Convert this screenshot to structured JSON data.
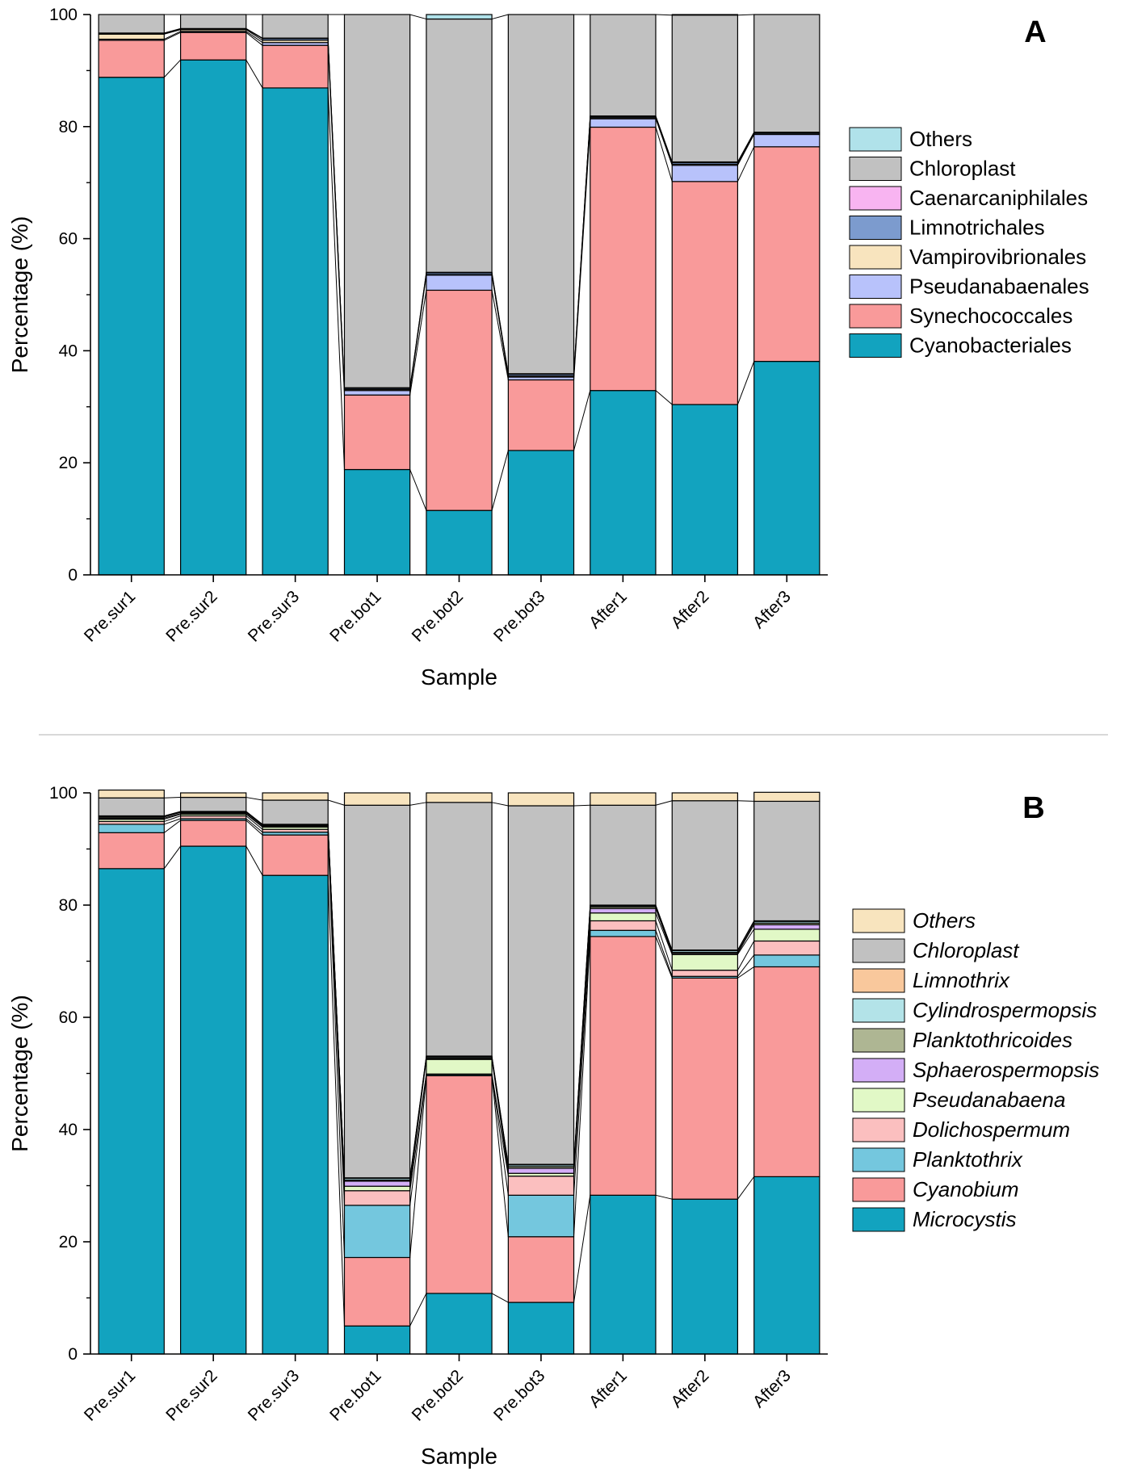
{
  "chart_data": [
    {
      "type": "bar",
      "stacked": true,
      "panel_label": "A",
      "xlabel": "Sample",
      "ylabel": "Percentage (%)",
      "ylim": [
        0,
        100
      ],
      "yticks": [
        0,
        20,
        40,
        60,
        80,
        100
      ],
      "categories": [
        "Pre.sur1",
        "Pre.sur2",
        "Pre.sur3",
        "Pre.bot1",
        "Pre.bot2",
        "Pre.bot3",
        "After1",
        "After2",
        "After3"
      ],
      "legend_italic": false,
      "series": [
        {
          "name": "Cyanobacteriales",
          "color": "#12A3BF",
          "values": [
            88.8,
            91.9,
            86.9,
            18.8,
            11.5,
            22.2,
            32.9,
            30.4,
            38.1
          ]
        },
        {
          "name": "Synechococcales",
          "color": "#F99A9A",
          "values": [
            6.6,
            4.9,
            7.6,
            13.3,
            39.3,
            12.6,
            47.0,
            39.8,
            38.3
          ]
        },
        {
          "name": "Pseudanabaenales",
          "color": "#B8C2FB",
          "values": [
            0.2,
            0.2,
            0.5,
            0.8,
            2.7,
            0.5,
            1.5,
            2.9,
            2.2
          ]
        },
        {
          "name": "Vampirovibrionales",
          "color": "#F8E4BE",
          "values": [
            0.9,
            0.3,
            0.4,
            0.2,
            0.1,
            0.2,
            0.2,
            0.2,
            0.1
          ]
        },
        {
          "name": "Limnotrichales",
          "color": "#7C9BCE",
          "values": [
            0.1,
            0.1,
            0.3,
            0.2,
            0.3,
            0.3,
            0.2,
            0.3,
            0.2
          ]
        },
        {
          "name": "Caenarcaniphilales",
          "color": "#F8B4F1",
          "values": [
            0.1,
            0.1,
            0.1,
            0.1,
            0.1,
            0.1,
            0.1,
            0.1,
            0.1
          ]
        },
        {
          "name": "Chloroplast",
          "color": "#C1C1C1",
          "values": [
            3.3,
            2.5,
            4.2,
            66.6,
            45.2,
            64.1,
            18.1,
            26.2,
            21.0
          ]
        },
        {
          "name": "Others",
          "color": "#B0E2EA",
          "values": [
            0.0,
            0.0,
            0.0,
            0.0,
            0.8,
            0.0,
            0.0,
            0.1,
            0.0
          ]
        }
      ]
    },
    {
      "type": "bar",
      "stacked": true,
      "panel_label": "B",
      "xlabel": "Sample",
      "ylabel": "Percentage (%)",
      "ylim": [
        0,
        100
      ],
      "yticks": [
        0,
        20,
        40,
        60,
        80,
        100
      ],
      "categories": [
        "Pre.sur1",
        "Pre.sur2",
        "Pre.sur3",
        "Pre.bot1",
        "Pre.bot2",
        "Pre.bot3",
        "After1",
        "After2",
        "After3"
      ],
      "legend_italic": true,
      "series": [
        {
          "name": "Microcystis",
          "color": "#12A3BF",
          "values": [
            86.5,
            90.5,
            85.3,
            5.0,
            10.8,
            9.2,
            28.3,
            27.6,
            31.6
          ]
        },
        {
          "name": "Cyanobium",
          "color": "#F99A9A",
          "values": [
            6.4,
            4.6,
            7.2,
            12.2,
            38.8,
            11.7,
            46.1,
            39.4,
            37.4
          ]
        },
        {
          "name": "Planktothrix",
          "color": "#74C7DE",
          "values": [
            1.5,
            0.3,
            0.5,
            9.3,
            0.2,
            7.4,
            1.1,
            0.3,
            2.1
          ]
        },
        {
          "name": "Dolichospermum",
          "color": "#FBBFBF",
          "values": [
            0.5,
            0.5,
            0.5,
            2.6,
            0.1,
            3.4,
            1.7,
            1.1,
            2.5
          ]
        },
        {
          "name": "Pseudanabaena",
          "color": "#E1F8C6",
          "values": [
            0.4,
            0.3,
            0.4,
            0.8,
            2.6,
            0.5,
            1.4,
            2.8,
            2.1
          ]
        },
        {
          "name": "Sphaerospermopsis",
          "color": "#D3AEF6",
          "values": [
            0.2,
            0.1,
            0.1,
            0.9,
            0.1,
            0.9,
            0.8,
            0.2,
            0.8
          ]
        },
        {
          "name": "Planktothricoides",
          "color": "#AEB693",
          "values": [
            0.2,
            0.2,
            0.2,
            0.2,
            0.2,
            0.3,
            0.3,
            0.2,
            0.3
          ]
        },
        {
          "name": "Cylindrospermopsis",
          "color": "#B3E3E8",
          "values": [
            0.1,
            0.1,
            0.1,
            0.3,
            0.2,
            0.3,
            0.2,
            0.3,
            0.3
          ]
        },
        {
          "name": "Limnothrix",
          "color": "#F9C89C",
          "values": [
            0.1,
            0.1,
            0.1,
            0.1,
            0.1,
            0.1,
            0.1,
            0.1,
            0.1
          ]
        },
        {
          "name": "Chloroplast",
          "color": "#C1C1C1",
          "values": [
            3.2,
            2.5,
            4.3,
            66.4,
            45.2,
            63.9,
            17.8,
            26.6,
            21.3
          ]
        },
        {
          "name": "Others",
          "color": "#F8E4BE",
          "values": [
            1.4,
            0.8,
            1.3,
            2.2,
            1.7,
            2.3,
            2.2,
            1.4,
            1.6
          ]
        }
      ]
    }
  ]
}
